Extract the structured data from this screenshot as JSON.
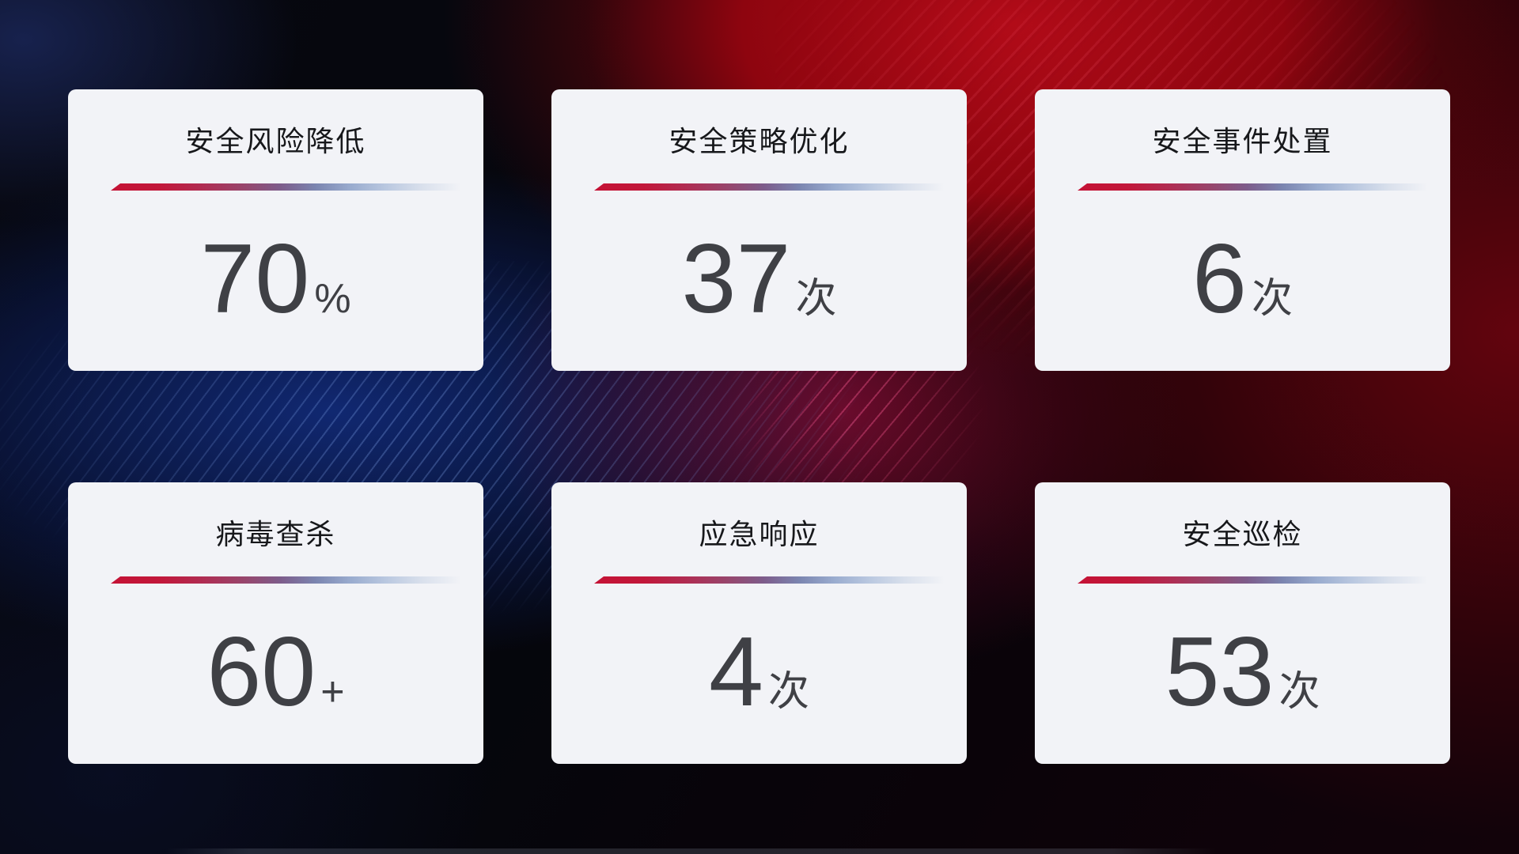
{
  "colors": {
    "card_bg": "#f2f3f7",
    "title_color": "#17181b",
    "value_color": "#3f4045",
    "accent_red": "#c41235",
    "accent_blue": "#9aaccf"
  },
  "cards": [
    {
      "id": "security-risk-reduction",
      "title": "安全风险降低",
      "value": "70",
      "unit": "%"
    },
    {
      "id": "security-policy-optimization",
      "title": "安全策略优化",
      "value": "37",
      "unit": "次"
    },
    {
      "id": "security-incident-handling",
      "title": "安全事件处置",
      "value": "6",
      "unit": "次"
    },
    {
      "id": "virus-scan",
      "title": "病毒查杀",
      "value": "60",
      "unit": "+"
    },
    {
      "id": "emergency-response",
      "title": "应急响应",
      "value": "4",
      "unit": "次"
    },
    {
      "id": "security-inspection",
      "title": "安全巡检",
      "value": "53",
      "unit": "次"
    }
  ]
}
